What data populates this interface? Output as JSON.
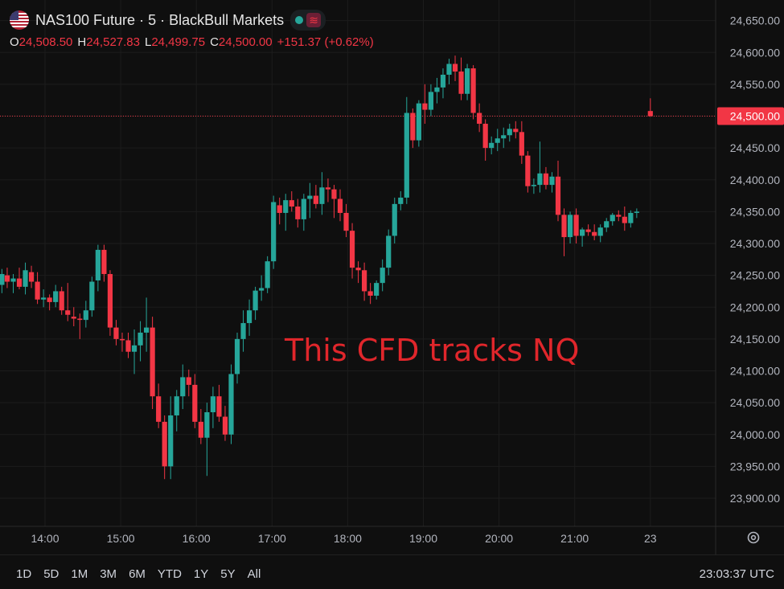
{
  "header": {
    "flag_icon": "us-flag-icon",
    "title": "NAS100 Future · 5 · BlackBull Markets",
    "open_label": "O",
    "open": "24,508.50",
    "high_label": "H",
    "high": "24,527.83",
    "low_label": "L",
    "low": "24,499.75",
    "close_label": "C",
    "close": "24,500.00",
    "change": "+151.37 (+0.62%)",
    "indicator_icon": "market-status-icon",
    "wave_icon": "wave-icon"
  },
  "annotation": "This CFD tracks NQ",
  "bottom": {
    "ranges": [
      "1D",
      "5D",
      "1M",
      "3M",
      "6M",
      "YTD",
      "1Y",
      "5Y",
      "All"
    ],
    "clock": "23:03:37 UTC"
  },
  "colors": {
    "up": "#26a69a",
    "down": "#f23645",
    "background": "#0f0f0f",
    "grid": "#1c1c1c",
    "price_label_bg": "#f23645"
  },
  "chart_data": {
    "type": "candlestick",
    "y_ticks": [
      "24,650.00",
      "24,600.00",
      "24,550.00",
      "24,500.00",
      "24,450.00",
      "24,400.00",
      "24,350.00",
      "24,300.00",
      "24,250.00",
      "24,200.00",
      "24,150.00",
      "24,100.00",
      "24,050.00",
      "24,000.00",
      "23,950.00",
      "23,900.00"
    ],
    "y_tick_values": [
      24650,
      24600,
      24550,
      24500,
      24450,
      24400,
      24350,
      24300,
      24250,
      24200,
      24150,
      24100,
      24050,
      24000,
      23950,
      23900
    ],
    "x_ticks": [
      "14:00",
      "15:00",
      "16:00",
      "17:00",
      "18:00",
      "19:00",
      "20:00",
      "21:00",
      "23"
    ],
    "x_tick_times": [
      14,
      15,
      16,
      17,
      18,
      19,
      20,
      21,
      22
    ],
    "last_price": 24500.0,
    "last_price_label": "24,500.00",
    "ylim": [
      23870,
      24680
    ],
    "candles": [
      [
        13.1,
        24195,
        24230,
        24185,
        24220
      ],
      [
        13.2,
        24220,
        24260,
        24212,
        24248
      ],
      [
        13.27,
        24245,
        24275,
        24236,
        24255
      ],
      [
        13.35,
        24255,
        24270,
        24230,
        24235
      ],
      [
        13.43,
        24235,
        24260,
        24222,
        24252
      ],
      [
        13.5,
        24250,
        24262,
        24230,
        24240
      ],
      [
        13.58,
        24240,
        24252,
        24222,
        24245
      ],
      [
        13.66,
        24245,
        24262,
        24228,
        24232
      ],
      [
        13.74,
        24232,
        24270,
        24220,
        24258
      ],
      [
        13.82,
        24255,
        24265,
        24230,
        24240
      ],
      [
        13.9,
        24240,
        24255,
        24205,
        24212
      ],
      [
        13.98,
        24212,
        24228,
        24200,
        24215
      ],
      [
        14.06,
        24215,
        24220,
        24195,
        24208
      ],
      [
        14.14,
        24208,
        24235,
        24200,
        24225
      ],
      [
        14.22,
        24225,
        24232,
        24188,
        24195
      ],
      [
        14.3,
        24195,
        24238,
        24178,
        24188
      ],
      [
        14.38,
        24185,
        24200,
        24170,
        24182
      ],
      [
        14.46,
        24182,
        24190,
        24150,
        24180
      ],
      [
        14.54,
        24180,
        24210,
        24168,
        24195
      ],
      [
        14.62,
        24195,
        24248,
        24185,
        24240
      ],
      [
        14.7,
        24242,
        24298,
        24225,
        24290
      ],
      [
        14.78,
        24290,
        24298,
        24240,
        24252
      ],
      [
        14.86,
        24252,
        24258,
        24155,
        24168
      ],
      [
        14.94,
        24168,
        24180,
        24140,
        24150
      ],
      [
        15.02,
        24150,
        24160,
        24130,
        24148
      ],
      [
        15.1,
        24148,
        24160,
        24120,
        24130
      ],
      [
        15.18,
        24130,
        24165,
        24095,
        24140
      ],
      [
        15.26,
        24140,
        24178,
        24115,
        24160
      ],
      [
        15.34,
        24160,
        24215,
        24130,
        24168
      ],
      [
        15.42,
        24168,
        24185,
        24040,
        24060
      ],
      [
        15.5,
        24060,
        24080,
        24010,
        24020
      ],
      [
        15.58,
        24020,
        24030,
        23930,
        23950
      ],
      [
        15.66,
        23950,
        24060,
        23930,
        24030
      ],
      [
        15.74,
        24030,
        24070,
        24005,
        24060
      ],
      [
        15.82,
        24060,
        24110,
        24040,
        24090
      ],
      [
        15.9,
        24090,
        24102,
        24060,
        24078
      ],
      [
        15.98,
        24078,
        24095,
        24010,
        24020
      ],
      [
        16.06,
        24020,
        24040,
        23985,
        23995
      ],
      [
        16.14,
        23995,
        24050,
        23935,
        24035
      ],
      [
        16.22,
        24035,
        24075,
        24010,
        24060
      ],
      [
        16.3,
        24060,
        24078,
        24020,
        24028
      ],
      [
        16.38,
        24028,
        24045,
        23990,
        24000
      ],
      [
        16.46,
        24000,
        24110,
        23985,
        24095
      ],
      [
        16.54,
        24095,
        24160,
        24080,
        24150
      ],
      [
        16.62,
        24150,
        24195,
        24130,
        24175
      ],
      [
        16.7,
        24175,
        24212,
        24155,
        24195
      ],
      [
        16.78,
        24195,
        24232,
        24180,
        24226
      ],
      [
        16.86,
        24226,
        24250,
        24210,
        24230
      ],
      [
        16.94,
        24230,
        24280,
        24222,
        24272
      ],
      [
        17.02,
        24272,
        24375,
        24260,
        24365
      ],
      [
        17.1,
        24360,
        24372,
        24330,
        24348
      ],
      [
        17.18,
        24348,
        24378,
        24320,
        24368
      ],
      [
        17.26,
        24368,
        24382,
        24350,
        24358
      ],
      [
        17.34,
        24358,
        24370,
        24325,
        24338
      ],
      [
        17.42,
        24338,
        24378,
        24320,
        24370
      ],
      [
        17.5,
        24370,
        24395,
        24340,
        24375
      ],
      [
        17.58,
        24375,
        24392,
        24355,
        24362
      ],
      [
        17.66,
        24362,
        24412,
        24345,
        24388
      ],
      [
        17.74,
        24388,
        24402,
        24365,
        24385
      ],
      [
        17.82,
        24385,
        24392,
        24340,
        24370
      ],
      [
        17.9,
        24370,
        24385,
        24335,
        24348
      ],
      [
        17.98,
        24348,
        24362,
        24310,
        24320
      ],
      [
        18.06,
        24320,
        24332,
        24245,
        24262
      ],
      [
        18.14,
        24262,
        24272,
        24238,
        24258
      ],
      [
        18.22,
        24258,
        24270,
        24210,
        24225
      ],
      [
        18.3,
        24225,
        24238,
        24205,
        24218
      ],
      [
        18.38,
        24218,
        24242,
        24212,
        24238
      ],
      [
        18.46,
        24238,
        24275,
        24225,
        24262
      ],
      [
        18.54,
        24262,
        24322,
        24250,
        24312
      ],
      [
        18.62,
        24312,
        24372,
        24300,
        24362
      ],
      [
        18.7,
        24362,
        24382,
        24352,
        24372
      ],
      [
        18.78,
        24372,
        24530,
        24362,
        24505
      ],
      [
        18.86,
        24505,
        24512,
        24450,
        24462
      ],
      [
        18.94,
        24462,
        24525,
        24452,
        24520
      ],
      [
        19.02,
        24520,
        24550,
        24488,
        24510
      ],
      [
        19.1,
        24510,
        24550,
        24500,
        24538
      ],
      [
        19.18,
        24538,
        24560,
        24520,
        24545
      ],
      [
        19.26,
        24545,
        24575,
        24528,
        24565
      ],
      [
        19.34,
        24565,
        24590,
        24550,
        24582
      ],
      [
        19.42,
        24582,
        24595,
        24555,
        24570
      ],
      [
        19.5,
        24570,
        24592,
        24525,
        24535
      ],
      [
        19.58,
        24535,
        24582,
        24525,
        24575
      ],
      [
        19.66,
        24575,
        24580,
        24495,
        24505
      ],
      [
        19.74,
        24505,
        24520,
        24475,
        24488
      ],
      [
        19.82,
        24488,
        24495,
        24430,
        24450
      ],
      [
        19.9,
        24450,
        24468,
        24440,
        24458
      ],
      [
        19.98,
        24458,
        24480,
        24445,
        24465
      ],
      [
        20.06,
        24465,
        24482,
        24450,
        24470
      ],
      [
        20.14,
        24470,
        24488,
        24460,
        24480
      ],
      [
        20.22,
        24480,
        24492,
        24465,
        24475
      ],
      [
        20.3,
        24475,
        24492,
        24425,
        24438
      ],
      [
        20.38,
        24438,
        24445,
        24380,
        24390
      ],
      [
        20.46,
        24390,
        24402,
        24378,
        24392
      ],
      [
        20.54,
        24392,
        24460,
        24380,
        24410
      ],
      [
        20.62,
        24410,
        24420,
        24385,
        24392
      ],
      [
        20.7,
        24392,
        24412,
        24380,
        24405
      ],
      [
        20.78,
        24405,
        24430,
        24335,
        24345
      ],
      [
        20.86,
        24345,
        24355,
        24280,
        24310
      ],
      [
        20.94,
        24310,
        24350,
        24300,
        24345
      ],
      [
        21.02,
        24345,
        24355,
        24300,
        24312
      ],
      [
        21.1,
        24312,
        24325,
        24295,
        24322
      ],
      [
        21.18,
        24322,
        24330,
        24312,
        24318
      ],
      [
        21.26,
        24318,
        24330,
        24305,
        24312
      ],
      [
        21.34,
        24312,
        24330,
        24302,
        24325
      ],
      [
        21.42,
        24325,
        24340,
        24318,
        24335
      ],
      [
        21.5,
        24335,
        24348,
        24328,
        24345
      ],
      [
        21.58,
        24345,
        24352,
        24335,
        24342
      ],
      [
        21.66,
        24342,
        24358,
        24320,
        24332
      ],
      [
        21.74,
        24332,
        24352,
        24325,
        24348
      ],
      [
        21.82,
        24348,
        24355,
        24340,
        24350
      ],
      [
        22.0,
        24508,
        24528,
        24499,
        24500
      ]
    ]
  }
}
